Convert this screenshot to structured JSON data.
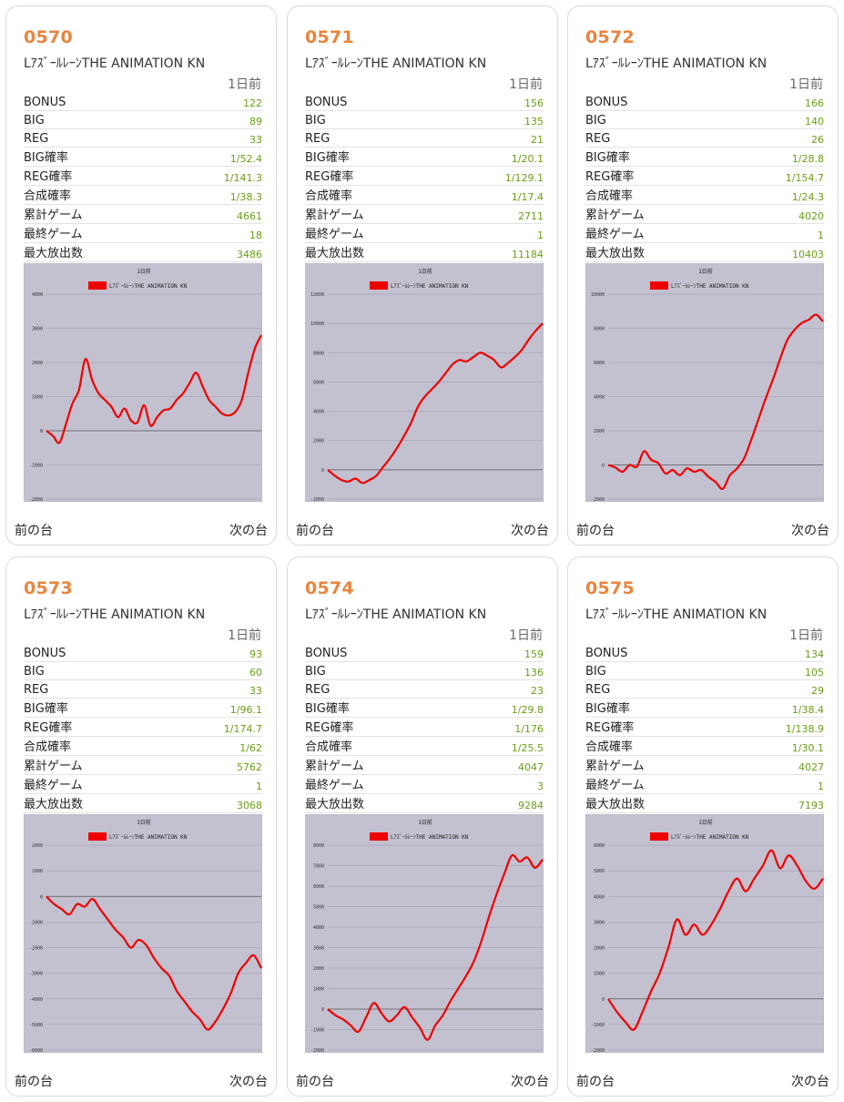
{
  "labels": {
    "day": "1日前",
    "prev": "前の台",
    "next": "次の台",
    "rows": [
      "BONUS",
      "BIG",
      "REG",
      "BIG確率",
      "REG確率",
      "合成確率",
      "累計ゲーム",
      "最終ゲーム",
      "最大放出数"
    ],
    "chart_title": "1日前"
  },
  "colors": {
    "accent": "#e8853d",
    "value": "#6a9e16",
    "chart_bg": "#c3c0cf",
    "line": "#ee0000"
  },
  "machines": [
    {
      "number": "0570",
      "name": "LｱｽﾞｰﾙﾚｰﾝTHE ANIMATION KN",
      "values": [
        "122",
        "89",
        "33",
        "1/52.4",
        "1/141.3",
        "1/38.3",
        "4661",
        "18",
        "3486"
      ],
      "legend": "LｱｽﾞｰﾙﾚｰﾝTHE ANIMATION KN"
    },
    {
      "number": "0571",
      "name": "LｱｽﾞｰﾙﾚｰﾝTHE ANIMATION KN",
      "values": [
        "156",
        "135",
        "21",
        "1/20.1",
        "1/129.1",
        "1/17.4",
        "2711",
        "1",
        "11184"
      ],
      "legend": "LｱｽﾞｰﾙﾚｰﾝTHE ANIMATION KN"
    },
    {
      "number": "0572",
      "name": "LｱｽﾞｰﾙﾚｰﾝTHE ANIMATION KN",
      "values": [
        "166",
        "140",
        "26",
        "1/28.8",
        "1/154.7",
        "1/24.3",
        "4020",
        "1",
        "10403"
      ],
      "legend": "LｱｽﾞｰﾙﾚｰﾝTHE ANIMATION KN"
    },
    {
      "number": "0573",
      "name": "LｱｽﾞｰﾙﾚｰﾝTHE ANIMATION KN",
      "values": [
        "93",
        "60",
        "33",
        "1/96.1",
        "1/174.7",
        "1/62",
        "5762",
        "1",
        "3068"
      ],
      "legend": "LｱｽﾞｰﾙﾚｰﾝTHE ANIMATION KN"
    },
    {
      "number": "0574",
      "name": "LｱｽﾞｰﾙﾚｰﾝTHE ANIMATION KN",
      "values": [
        "159",
        "136",
        "23",
        "1/29.8",
        "1/176",
        "1/25.5",
        "4047",
        "3",
        "9284"
      ],
      "legend": "LｱｽﾞｰﾙﾚｰﾝTHE ANIMATION KN"
    },
    {
      "number": "0575",
      "name": "LｱｽﾞｰﾙﾚｰﾝTHE ANIMATION KN",
      "values": [
        "134",
        "105",
        "29",
        "1/38.4",
        "1/138.9",
        "1/30.1",
        "4027",
        "1",
        "7193"
      ],
      "legend": "LｱｽﾞｰﾙﾚｰﾝTHE ANIMATION KN"
    }
  ],
  "chart_data": [
    {
      "type": "line",
      "title": "1日前",
      "series": [
        {
          "name": "LｱｽﾞｰﾙﾚｰﾝTHE ANIMATION KN"
        }
      ],
      "ylim": [
        -2000,
        4000
      ],
      "yticks": [
        -2000,
        -1000,
        0,
        1000,
        2000,
        3000,
        4000
      ],
      "values": [
        0,
        -150,
        -350,
        200,
        800,
        1200,
        2100,
        1500,
        1100,
        900,
        700,
        400,
        650,
        300,
        250,
        750,
        150,
        400,
        600,
        650,
        900,
        1100,
        1400,
        1700,
        1300,
        900,
        700,
        500,
        450,
        550,
        900,
        1700,
        2400,
        2800
      ]
    },
    {
      "type": "line",
      "title": "1日前",
      "series": [
        {
          "name": "LｱｽﾞｰﾙﾚｰﾝTHE ANIMATION KN"
        }
      ],
      "ylim": [
        -2000,
        12000
      ],
      "yticks": [
        -2000,
        0,
        2000,
        4000,
        6000,
        8000,
        10000,
        12000
      ],
      "values": [
        0,
        -400,
        -700,
        -800,
        -600,
        -900,
        -700,
        -400,
        200,
        800,
        1500,
        2300,
        3200,
        4300,
        5000,
        5500,
        6000,
        6600,
        7200,
        7500,
        7400,
        7700,
        8000,
        7800,
        7500,
        7000,
        7300,
        7700,
        8200,
        8900,
        9500,
        10000
      ]
    },
    {
      "type": "line",
      "title": "1日前",
      "series": [
        {
          "name": "LｱｽﾞｰﾙﾚｰﾝTHE ANIMATION KN"
        }
      ],
      "ylim": [
        -2000,
        10000
      ],
      "yticks": [
        -2000,
        0,
        2000,
        4000,
        6000,
        8000,
        10000
      ],
      "values": [
        0,
        -150,
        -400,
        0,
        -100,
        800,
        300,
        100,
        -500,
        -300,
        -600,
        -200,
        -400,
        -300,
        -700,
        -1000,
        -1400,
        -600,
        -200,
        400,
        1500,
        2700,
        3900,
        5000,
        6200,
        7300,
        7900,
        8300,
        8500,
        8800,
        8400
      ]
    },
    {
      "type": "line",
      "title": "1日前",
      "series": [
        {
          "name": "LｱｽﾞｰﾙﾚｰﾝTHE ANIMATION KN"
        }
      ],
      "ylim": [
        -6000,
        2000
      ],
      "yticks": [
        -6000,
        -5000,
        -4000,
        -3000,
        -2000,
        -1000,
        0,
        1000,
        2000
      ],
      "values": [
        0,
        -300,
        -500,
        -700,
        -300,
        -400,
        -100,
        -500,
        -900,
        -1300,
        -1600,
        -2000,
        -1700,
        -1900,
        -2400,
        -2800,
        -3100,
        -3700,
        -4100,
        -4500,
        -4800,
        -5200,
        -4900,
        -4400,
        -3800,
        -3000,
        -2600,
        -2300,
        -2800
      ]
    },
    {
      "type": "line",
      "title": "1日前",
      "series": [
        {
          "name": "LｱｽﾞｰﾙﾚｰﾝTHE ANIMATION KN"
        }
      ],
      "ylim": [
        -2000,
        8000
      ],
      "yticks": [
        -2000,
        -1000,
        0,
        1000,
        2000,
        3000,
        4000,
        5000,
        6000,
        7000,
        8000
      ],
      "values": [
        0,
        -300,
        -500,
        -800,
        -1100,
        -400,
        300,
        -200,
        -600,
        -300,
        100,
        -400,
        -900,
        -1500,
        -800,
        -300,
        400,
        1000,
        1600,
        2300,
        3300,
        4500,
        5600,
        6600,
        7500,
        7200,
        7400,
        6900,
        7300
      ]
    },
    {
      "type": "line",
      "title": "1日前",
      "series": [
        {
          "name": "LｱｽﾞｰﾙﾚｰﾝTHE ANIMATION KN"
        }
      ],
      "ylim": [
        -2000,
        6000
      ],
      "yticks": [
        -2000,
        -1000,
        0,
        1000,
        2000,
        3000,
        4000,
        5000,
        6000
      ],
      "values": [
        0,
        -500,
        -900,
        -1200,
        -500,
        300,
        1000,
        2000,
        3100,
        2500,
        2900,
        2500,
        2900,
        3500,
        4200,
        4700,
        4200,
        4700,
        5200,
        5800,
        5100,
        5600,
        5200,
        4600,
        4300,
        4700
      ]
    }
  ]
}
